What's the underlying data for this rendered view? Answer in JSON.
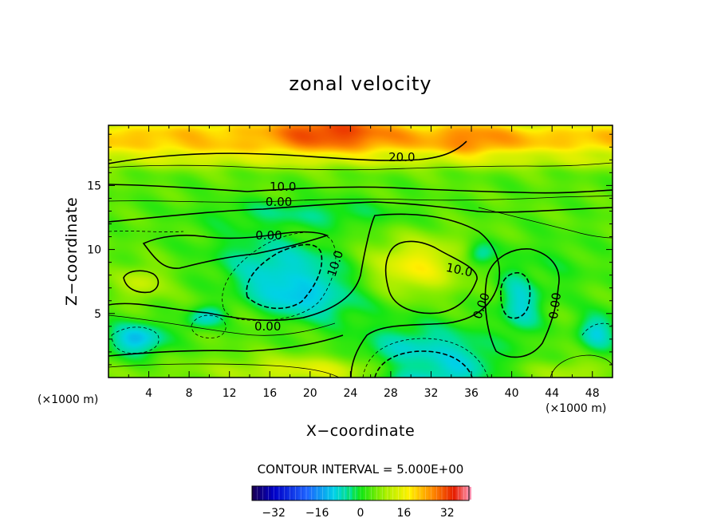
{
  "chart_data": {
    "type": "heatmap",
    "title": "zonal velocity",
    "xlabel": "X−coordinate",
    "ylabel": "Z−coordinate",
    "x_unit": "(×1000 m)",
    "y_unit": "(×1000 m)",
    "xlim": [
      0,
      50
    ],
    "ylim": [
      0,
      19.7
    ],
    "x_ticks": [
      4,
      8,
      12,
      16,
      20,
      24,
      28,
      32,
      36,
      40,
      44,
      48
    ],
    "y_ticks": [
      5,
      10,
      15
    ],
    "contour_interval": 5,
    "contour_interval_text": "CONTOUR INTERVAL = 5.000E+00",
    "colorbar": {
      "range": [
        -40,
        40
      ],
      "ticks": [
        -32,
        -16,
        0,
        16,
        32
      ],
      "tick_labels": [
        "−32",
        "−16",
        "0",
        "16",
        "32"
      ]
    },
    "contour_labels": [
      {
        "text": "20.0",
        "x": 29.1,
        "z": 17.2
      },
      {
        "text": "10.0",
        "x": 17.3,
        "z": 14.9
      },
      {
        "text": "0.00",
        "x": 16.9,
        "z": 13.7
      },
      {
        "text": "0.00",
        "x": 15.9,
        "z": 11.1
      },
      {
        "text": "10.0",
        "x": 22.5,
        "z": 8.9,
        "rotate": -72
      },
      {
        "text": "10.0",
        "x": 34.8,
        "z": 8.4,
        "rotate": 12
      },
      {
        "text": "0.00",
        "x": 37.0,
        "z": 5.6,
        "rotate": -70
      },
      {
        "text": "0.00",
        "x": 44.3,
        "z": 5.6,
        "rotate": -82
      },
      {
        "text": "0.00",
        "x": 15.8,
        "z": 4.0
      }
    ],
    "field": {
      "background": 4,
      "layers": [
        {
          "z0": 17.5,
          "z1": 19.7,
          "value": 22
        },
        {
          "z0": 16.5,
          "z1": 17.5,
          "value": 14
        },
        {
          "z0": 0.0,
          "z1": 1.0,
          "value": 6
        }
      ],
      "features": [
        {
          "x": 22,
          "z": 19.2,
          "rx": 7,
          "rz": 1.6,
          "value": 32,
          "rot": 0
        },
        {
          "x": 36,
          "z": 18.6,
          "rx": 4,
          "rz": 1.3,
          "value": 27,
          "rot": 0
        },
        {
          "x": 10,
          "z": 18.6,
          "rx": 6,
          "rz": 1.2,
          "value": 21,
          "rot": 0
        },
        {
          "x": 18,
          "z": 6.8,
          "rx": 3.1,
          "rz": 2.0,
          "value": -24,
          "rot": -40
        },
        {
          "x": 18.8,
          "z": 8.4,
          "rx": 2.0,
          "rz": 1.6,
          "value": -15,
          "rot": -40
        },
        {
          "x": 18.5,
          "z": 8.0,
          "rx": 6.0,
          "rz": 4.0,
          "value": -8,
          "rot": -40
        },
        {
          "x": 30.5,
          "z": 8.7,
          "rx": 5.0,
          "rz": 2.4,
          "value": 17,
          "rot": 10
        },
        {
          "x": 31.5,
          "z": 0.8,
          "rx": 5.0,
          "rz": 1.8,
          "value": -22,
          "rot": 0
        },
        {
          "x": 31.5,
          "z": 1.5,
          "rx": 7.0,
          "rz": 2.8,
          "value": -8,
          "rot": 0
        },
        {
          "x": 2.8,
          "z": 3.0,
          "rx": 3.0,
          "rz": 1.4,
          "value": -12,
          "rot": 0
        },
        {
          "x": 9.6,
          "z": 4.7,
          "rx": 1.9,
          "rz": 1.1,
          "value": -7,
          "rot": 30
        },
        {
          "x": 41.0,
          "z": 6.3,
          "rx": 2.1,
          "rz": 2.7,
          "value": -13,
          "rot": 0
        },
        {
          "x": 37.0,
          "z": 9.6,
          "rx": 1.6,
          "rz": 1.0,
          "value": -6,
          "rot": 0
        },
        {
          "x": 3.3,
          "z": 7.4,
          "rx": 2.6,
          "rz": 1.5,
          "value": 12,
          "rot": 0
        },
        {
          "x": 20.0,
          "z": 0.6,
          "rx": 9.0,
          "rz": 1.2,
          "value": 14,
          "rot": 0
        },
        {
          "x": 48.5,
          "z": 3.6,
          "rx": 2.0,
          "rz": 1.6,
          "value": -9,
          "rot": 0
        },
        {
          "x": 46.0,
          "z": 0.4,
          "rx": 3.5,
          "rz": 0.9,
          "value": 10,
          "rot": 0
        },
        {
          "x": 19.5,
          "z": 12.8,
          "rx": 10.0,
          "rz": 1.2,
          "value": -3,
          "rot": 0
        },
        {
          "x": 44.0,
          "z": 8.5,
          "rx": 5.0,
          "rz": 3.0,
          "value": 1,
          "rot": 0
        }
      ]
    }
  }
}
